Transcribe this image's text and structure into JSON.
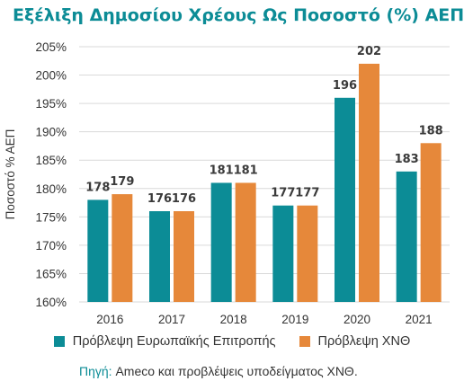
{
  "colors": {
    "title": "#0c8c96",
    "series_1": "#0c8c96",
    "series_2": "#e6883a"
  },
  "source": {
    "prefix": "Πηγή:",
    "text": " Ameco και προβλέψεις υποδείγματος ΧΝΘ."
  },
  "chart_data": {
    "type": "bar",
    "title": "Εξέλιξη Δημοσίου Χρέους Ως Ποσοστό (%) ΑΕΠ",
    "xlabel": "",
    "ylabel": "Ποσοστό % ΑΕΠ",
    "categories": [
      "2016",
      "2017",
      "2018",
      "2019",
      "2020",
      "2021"
    ],
    "series": [
      {
        "name": "Πρόβλεψη Ευρωπαϊκής Επιτροπής",
        "values": [
          178,
          176,
          181,
          177,
          196,
          183
        ]
      },
      {
        "name": "Πρόβλεψη ΧΝΘ",
        "values": [
          179,
          176,
          181,
          177,
          202,
          188
        ]
      }
    ],
    "ylim": [
      160,
      205
    ],
    "yticks": [
      160,
      165,
      170,
      175,
      180,
      185,
      190,
      195,
      200,
      205
    ],
    "ytick_labels": [
      "160%",
      "165%",
      "170%",
      "175%",
      "180%",
      "185%",
      "190%",
      "195%",
      "200%",
      "205%"
    ],
    "grid": true,
    "legend": "bottom"
  }
}
